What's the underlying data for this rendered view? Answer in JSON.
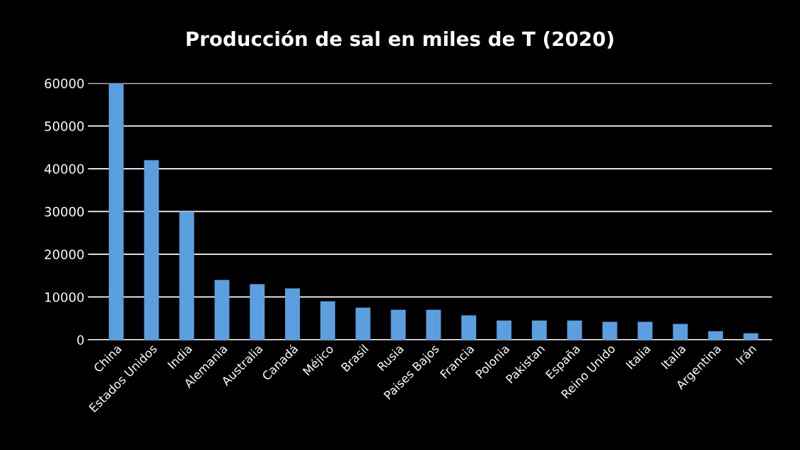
{
  "chart_data": {
    "type": "bar",
    "title": "Producción de sal en miles de T (2020)",
    "categories": [
      "China",
      "Estados Unidos",
      "India",
      "Alemania",
      "Australia",
      "Canadá",
      "Méjico",
      "Brasil",
      "Rusia",
      "Paises Bajos",
      "Francia",
      "Polonia",
      "Pakistan",
      "España",
      "Reino Unido",
      "Italia",
      "Italia",
      "Argentina",
      "Irán"
    ],
    "values": [
      60000,
      42000,
      30000,
      14000,
      13000,
      12000,
      9000,
      7500,
      7000,
      7000,
      5700,
      4500,
      4500,
      4500,
      4200,
      4200,
      3700,
      2000,
      1500
    ],
    "color": "#5b9fe0",
    "ylim": [
      0,
      60000
    ],
    "yticks": [
      0,
      10000,
      20000,
      30000,
      40000,
      50000,
      60000
    ],
    "grid": "y"
  }
}
